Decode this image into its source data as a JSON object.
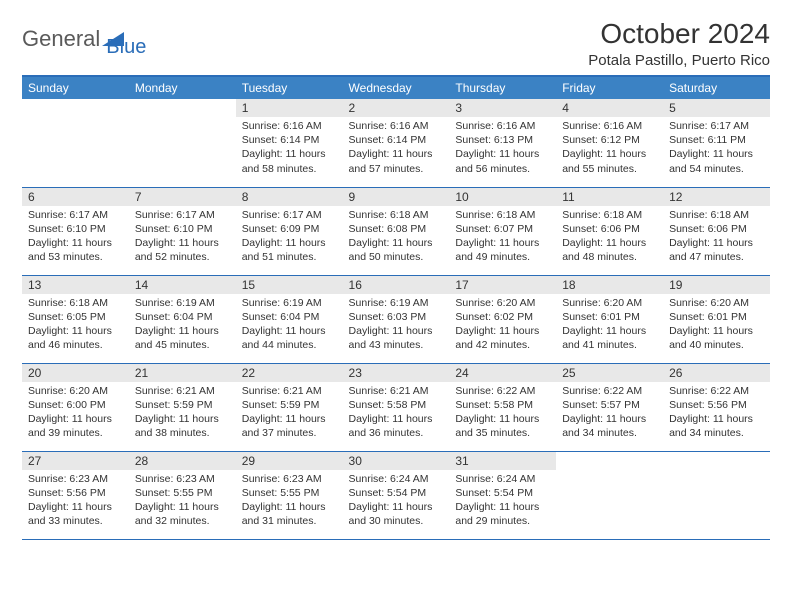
{
  "brand": {
    "name_part1": "General",
    "name_part2": "Blue",
    "logo_color": "#2a6db8",
    "text_color": "#5a5a5a"
  },
  "header": {
    "title": "October 2024",
    "location": "Potala Pastillo, Puerto Rico"
  },
  "colors": {
    "accent": "#2a6db8",
    "header_bg": "#3b82c4",
    "daynum_bg": "#e8e8e8",
    "text": "#333333",
    "page_bg": "#ffffff"
  },
  "days_of_week": [
    "Sunday",
    "Monday",
    "Tuesday",
    "Wednesday",
    "Thursday",
    "Friday",
    "Saturday"
  ],
  "weeks": [
    [
      {
        "empty": true
      },
      {
        "empty": true
      },
      {
        "num": "1",
        "sunrise": "Sunrise: 6:16 AM",
        "sunset": "Sunset: 6:14 PM",
        "daylight": "Daylight: 11 hours and 58 minutes."
      },
      {
        "num": "2",
        "sunrise": "Sunrise: 6:16 AM",
        "sunset": "Sunset: 6:14 PM",
        "daylight": "Daylight: 11 hours and 57 minutes."
      },
      {
        "num": "3",
        "sunrise": "Sunrise: 6:16 AM",
        "sunset": "Sunset: 6:13 PM",
        "daylight": "Daylight: 11 hours and 56 minutes."
      },
      {
        "num": "4",
        "sunrise": "Sunrise: 6:16 AM",
        "sunset": "Sunset: 6:12 PM",
        "daylight": "Daylight: 11 hours and 55 minutes."
      },
      {
        "num": "5",
        "sunrise": "Sunrise: 6:17 AM",
        "sunset": "Sunset: 6:11 PM",
        "daylight": "Daylight: 11 hours and 54 minutes."
      }
    ],
    [
      {
        "num": "6",
        "sunrise": "Sunrise: 6:17 AM",
        "sunset": "Sunset: 6:10 PM",
        "daylight": "Daylight: 11 hours and 53 minutes."
      },
      {
        "num": "7",
        "sunrise": "Sunrise: 6:17 AM",
        "sunset": "Sunset: 6:10 PM",
        "daylight": "Daylight: 11 hours and 52 minutes."
      },
      {
        "num": "8",
        "sunrise": "Sunrise: 6:17 AM",
        "sunset": "Sunset: 6:09 PM",
        "daylight": "Daylight: 11 hours and 51 minutes."
      },
      {
        "num": "9",
        "sunrise": "Sunrise: 6:18 AM",
        "sunset": "Sunset: 6:08 PM",
        "daylight": "Daylight: 11 hours and 50 minutes."
      },
      {
        "num": "10",
        "sunrise": "Sunrise: 6:18 AM",
        "sunset": "Sunset: 6:07 PM",
        "daylight": "Daylight: 11 hours and 49 minutes."
      },
      {
        "num": "11",
        "sunrise": "Sunrise: 6:18 AM",
        "sunset": "Sunset: 6:06 PM",
        "daylight": "Daylight: 11 hours and 48 minutes."
      },
      {
        "num": "12",
        "sunrise": "Sunrise: 6:18 AM",
        "sunset": "Sunset: 6:06 PM",
        "daylight": "Daylight: 11 hours and 47 minutes."
      }
    ],
    [
      {
        "num": "13",
        "sunrise": "Sunrise: 6:18 AM",
        "sunset": "Sunset: 6:05 PM",
        "daylight": "Daylight: 11 hours and 46 minutes."
      },
      {
        "num": "14",
        "sunrise": "Sunrise: 6:19 AM",
        "sunset": "Sunset: 6:04 PM",
        "daylight": "Daylight: 11 hours and 45 minutes."
      },
      {
        "num": "15",
        "sunrise": "Sunrise: 6:19 AM",
        "sunset": "Sunset: 6:04 PM",
        "daylight": "Daylight: 11 hours and 44 minutes."
      },
      {
        "num": "16",
        "sunrise": "Sunrise: 6:19 AM",
        "sunset": "Sunset: 6:03 PM",
        "daylight": "Daylight: 11 hours and 43 minutes."
      },
      {
        "num": "17",
        "sunrise": "Sunrise: 6:20 AM",
        "sunset": "Sunset: 6:02 PM",
        "daylight": "Daylight: 11 hours and 42 minutes."
      },
      {
        "num": "18",
        "sunrise": "Sunrise: 6:20 AM",
        "sunset": "Sunset: 6:01 PM",
        "daylight": "Daylight: 11 hours and 41 minutes."
      },
      {
        "num": "19",
        "sunrise": "Sunrise: 6:20 AM",
        "sunset": "Sunset: 6:01 PM",
        "daylight": "Daylight: 11 hours and 40 minutes."
      }
    ],
    [
      {
        "num": "20",
        "sunrise": "Sunrise: 6:20 AM",
        "sunset": "Sunset: 6:00 PM",
        "daylight": "Daylight: 11 hours and 39 minutes."
      },
      {
        "num": "21",
        "sunrise": "Sunrise: 6:21 AM",
        "sunset": "Sunset: 5:59 PM",
        "daylight": "Daylight: 11 hours and 38 minutes."
      },
      {
        "num": "22",
        "sunrise": "Sunrise: 6:21 AM",
        "sunset": "Sunset: 5:59 PM",
        "daylight": "Daylight: 11 hours and 37 minutes."
      },
      {
        "num": "23",
        "sunrise": "Sunrise: 6:21 AM",
        "sunset": "Sunset: 5:58 PM",
        "daylight": "Daylight: 11 hours and 36 minutes."
      },
      {
        "num": "24",
        "sunrise": "Sunrise: 6:22 AM",
        "sunset": "Sunset: 5:58 PM",
        "daylight": "Daylight: 11 hours and 35 minutes."
      },
      {
        "num": "25",
        "sunrise": "Sunrise: 6:22 AM",
        "sunset": "Sunset: 5:57 PM",
        "daylight": "Daylight: 11 hours and 34 minutes."
      },
      {
        "num": "26",
        "sunrise": "Sunrise: 6:22 AM",
        "sunset": "Sunset: 5:56 PM",
        "daylight": "Daylight: 11 hours and 34 minutes."
      }
    ],
    [
      {
        "num": "27",
        "sunrise": "Sunrise: 6:23 AM",
        "sunset": "Sunset: 5:56 PM",
        "daylight": "Daylight: 11 hours and 33 minutes."
      },
      {
        "num": "28",
        "sunrise": "Sunrise: 6:23 AM",
        "sunset": "Sunset: 5:55 PM",
        "daylight": "Daylight: 11 hours and 32 minutes."
      },
      {
        "num": "29",
        "sunrise": "Sunrise: 6:23 AM",
        "sunset": "Sunset: 5:55 PM",
        "daylight": "Daylight: 11 hours and 31 minutes."
      },
      {
        "num": "30",
        "sunrise": "Sunrise: 6:24 AM",
        "sunset": "Sunset: 5:54 PM",
        "daylight": "Daylight: 11 hours and 30 minutes."
      },
      {
        "num": "31",
        "sunrise": "Sunrise: 6:24 AM",
        "sunset": "Sunset: 5:54 PM",
        "daylight": "Daylight: 11 hours and 29 minutes."
      },
      {
        "empty": true
      },
      {
        "empty": true
      }
    ]
  ]
}
